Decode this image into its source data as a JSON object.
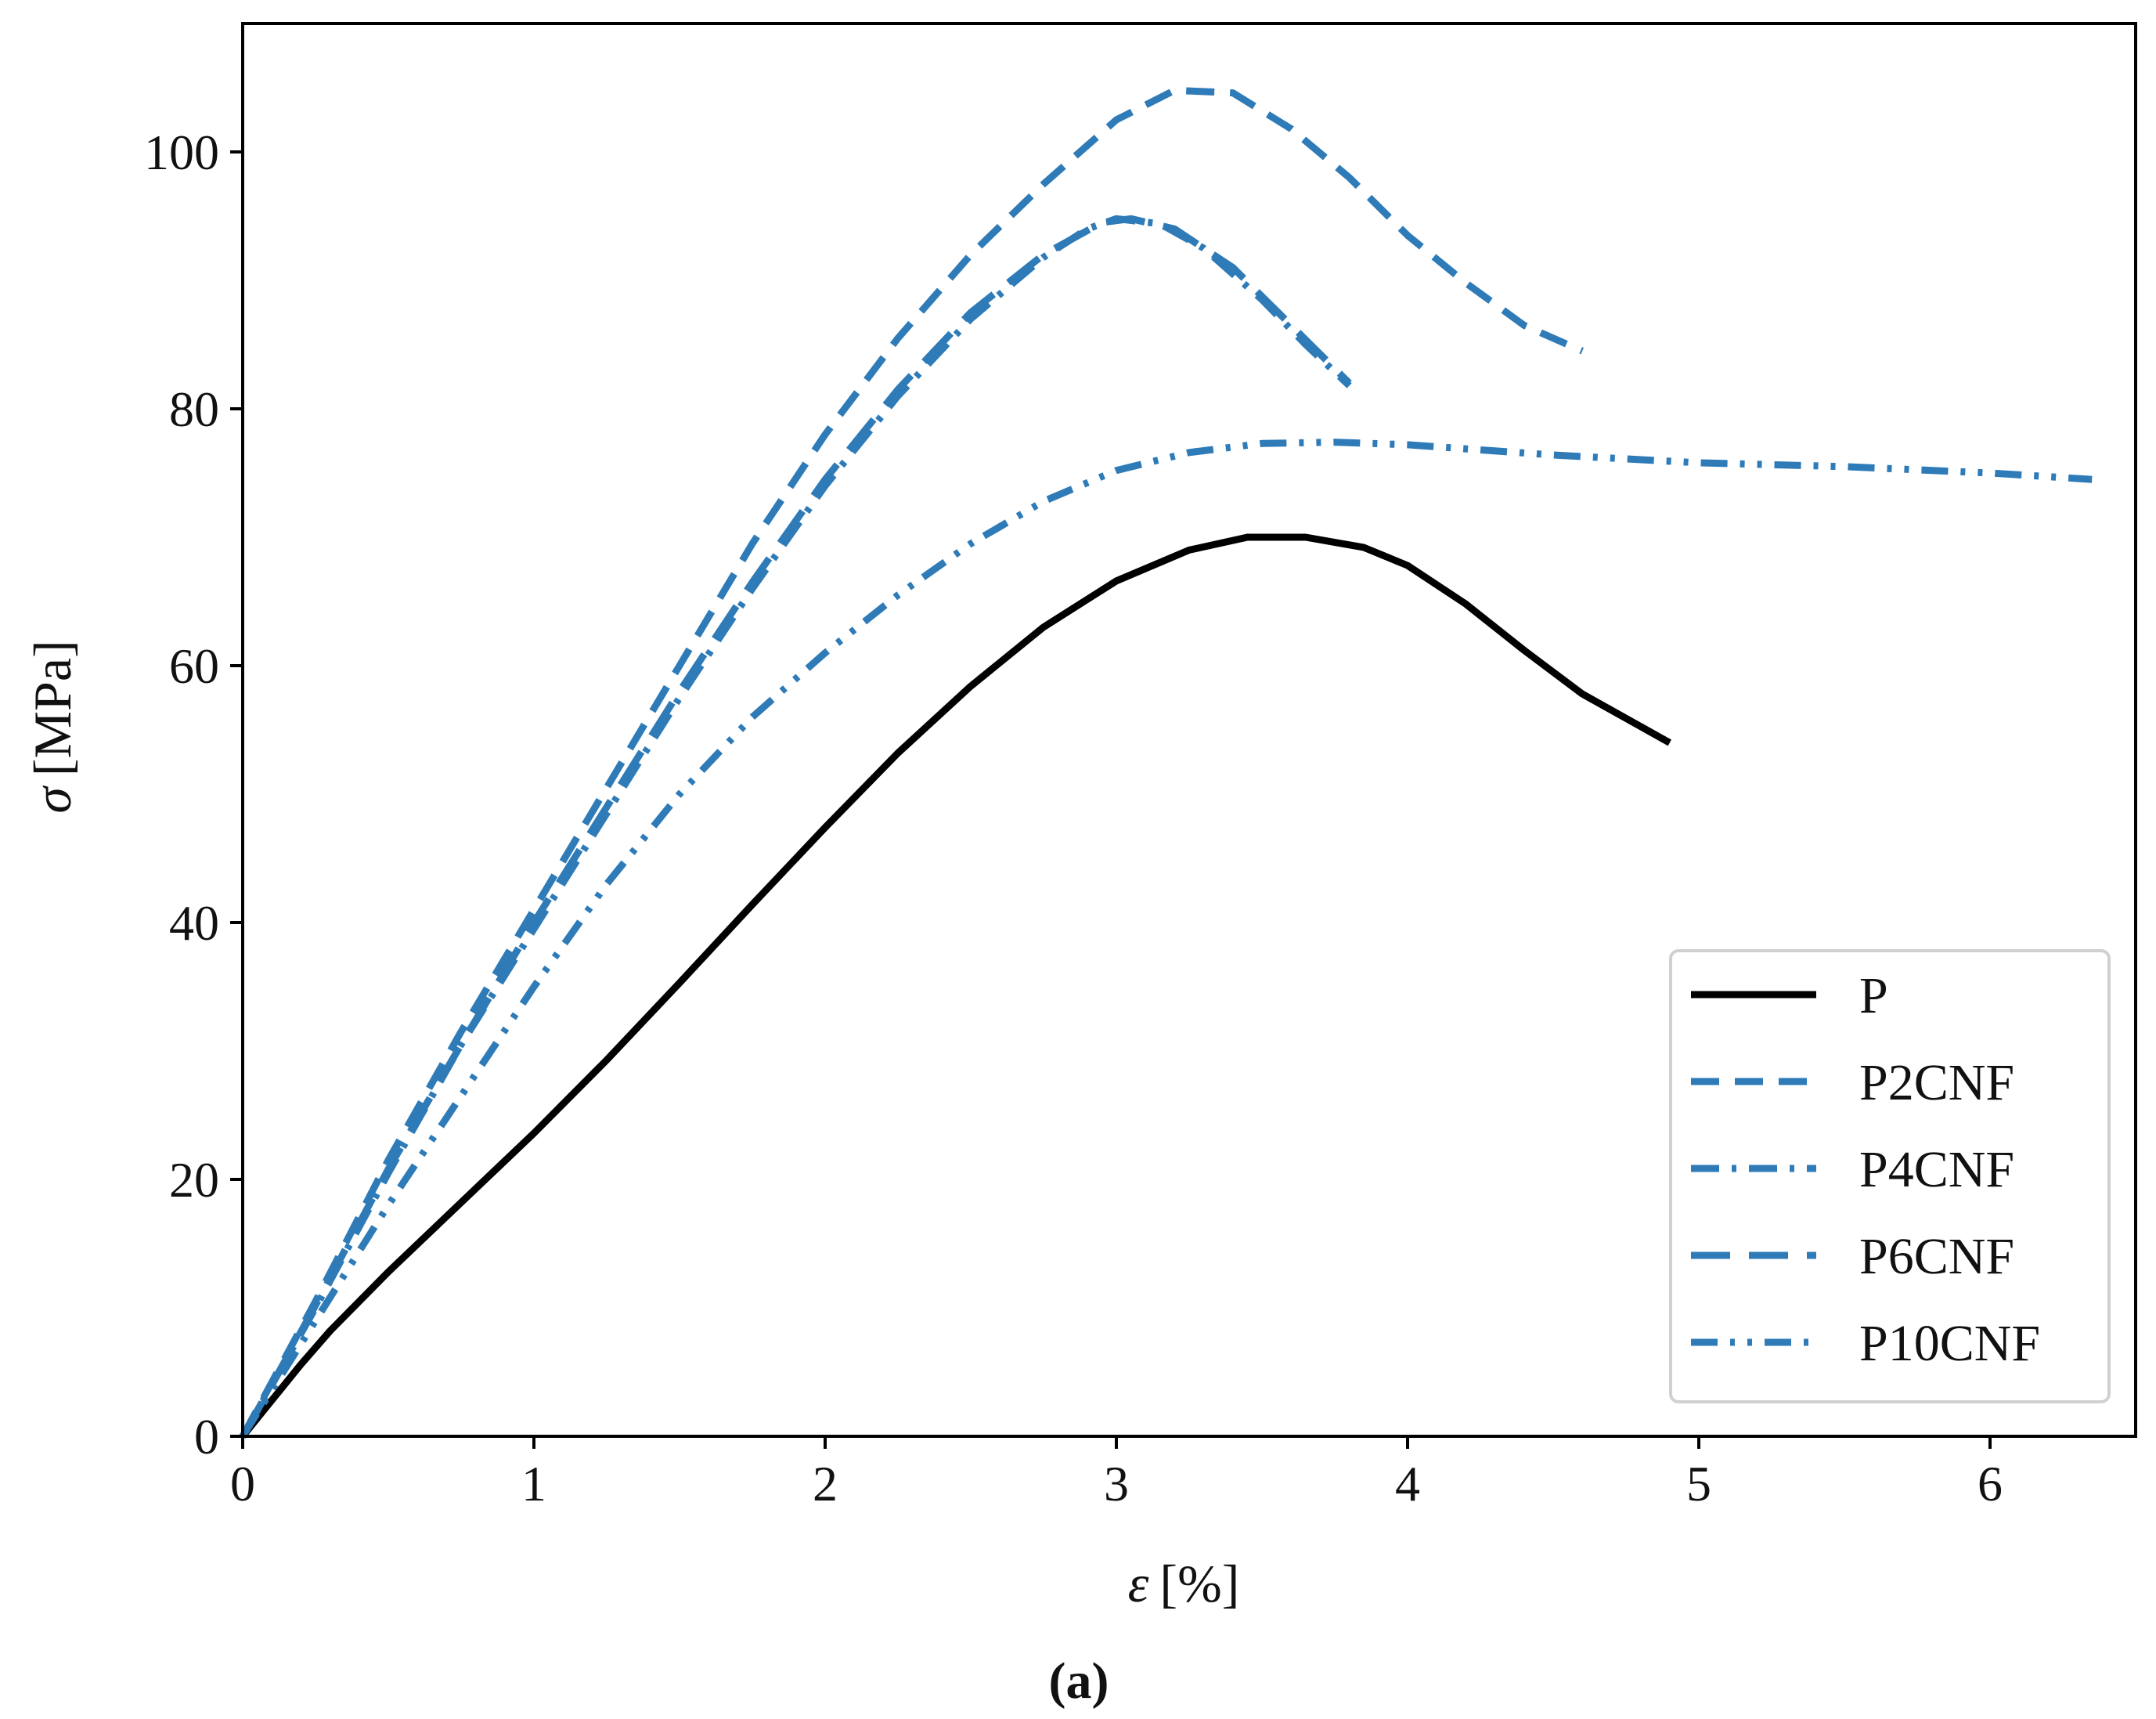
{
  "chart_data": {
    "type": "line",
    "title": "",
    "xlabel_symbol": "ε",
    "xlabel_unit": "[%]",
    "ylabel_symbol": "σ",
    "ylabel_unit": "[MPa]",
    "xlim": [
      0,
      6.5
    ],
    "ylim": [
      0,
      110
    ],
    "xticks": [
      0,
      1,
      2,
      3,
      4,
      5,
      6
    ],
    "yticks": [
      0,
      20,
      40,
      60,
      80,
      100
    ],
    "grid": false,
    "legend_position": "lower-right",
    "caption": "(a)",
    "series": [
      {
        "name": "P",
        "color": "#000000",
        "dash": "solid",
        "points": [
          [
            0,
            0
          ],
          [
            0.1,
            2.8
          ],
          [
            0.2,
            5.6
          ],
          [
            0.3,
            8.2
          ],
          [
            0.5,
            12.8
          ],
          [
            0.75,
            18.2
          ],
          [
            1.0,
            23.6
          ],
          [
            1.25,
            29.3
          ],
          [
            1.5,
            35.3
          ],
          [
            1.75,
            41.4
          ],
          [
            2.0,
            47.4
          ],
          [
            2.25,
            53.2
          ],
          [
            2.5,
            58.4
          ],
          [
            2.75,
            63.0
          ],
          [
            3.0,
            66.6
          ],
          [
            3.25,
            69.0
          ],
          [
            3.45,
            70.0
          ],
          [
            3.65,
            70.0
          ],
          [
            3.85,
            69.2
          ],
          [
            4.0,
            67.8
          ],
          [
            4.2,
            64.8
          ],
          [
            4.4,
            61.2
          ],
          [
            4.6,
            57.8
          ],
          [
            4.9,
            54.0
          ]
        ]
      },
      {
        "name": "P2CNF",
        "color": "#2e7bb8",
        "dash": "dashed",
        "points": [
          [
            0,
            0
          ],
          [
            0.1,
            4.2
          ],
          [
            0.25,
            10.5
          ],
          [
            0.5,
            21.5
          ],
          [
            0.75,
            31.5
          ],
          [
            1.0,
            41.0
          ],
          [
            1.25,
            50.5
          ],
          [
            1.5,
            60.0
          ],
          [
            1.75,
            69.5
          ],
          [
            2.0,
            78.0
          ],
          [
            2.25,
            85.5
          ],
          [
            2.5,
            92.0
          ],
          [
            2.75,
            97.5
          ],
          [
            3.0,
            102.5
          ],
          [
            3.2,
            104.8
          ],
          [
            3.4,
            104.6
          ],
          [
            3.6,
            101.8
          ],
          [
            3.8,
            98.0
          ],
          [
            4.0,
            93.5
          ],
          [
            4.2,
            89.8
          ],
          [
            4.4,
            86.5
          ],
          [
            4.6,
            84.5
          ]
        ]
      },
      {
        "name": "P4CNF",
        "color": "#2e7bb8",
        "dash": "dashdot",
        "points": [
          [
            0,
            0
          ],
          [
            0.1,
            4.0
          ],
          [
            0.25,
            10.0
          ],
          [
            0.5,
            20.5
          ],
          [
            0.75,
            30.5
          ],
          [
            1.0,
            39.5
          ],
          [
            1.25,
            48.5
          ],
          [
            1.5,
            57.5
          ],
          [
            1.75,
            66.0
          ],
          [
            2.0,
            74.0
          ],
          [
            2.25,
            81.0
          ],
          [
            2.5,
            87.0
          ],
          [
            2.75,
            91.8
          ],
          [
            2.9,
            94.0
          ],
          [
            3.0,
            94.8
          ],
          [
            3.15,
            94.4
          ],
          [
            3.3,
            92.5
          ],
          [
            3.5,
            88.5
          ],
          [
            3.65,
            85.0
          ],
          [
            3.8,
            81.8
          ]
        ]
      },
      {
        "name": "P6CNF",
        "color": "#2e7bb8",
        "dash": "longdash",
        "points": [
          [
            0,
            0
          ],
          [
            0.1,
            4.0
          ],
          [
            0.25,
            10.2
          ],
          [
            0.5,
            20.8
          ],
          [
            0.75,
            30.5
          ],
          [
            1.0,
            40.0
          ],
          [
            1.25,
            49.0
          ],
          [
            1.5,
            58.0
          ],
          [
            1.75,
            66.5
          ],
          [
            2.0,
            74.5
          ],
          [
            2.25,
            81.5
          ],
          [
            2.5,
            87.5
          ],
          [
            2.75,
            92.0
          ],
          [
            2.95,
            94.5
          ],
          [
            3.05,
            94.8
          ],
          [
            3.2,
            94.0
          ],
          [
            3.4,
            91.0
          ],
          [
            3.6,
            86.5
          ],
          [
            3.8,
            82.0
          ]
        ]
      },
      {
        "name": "P10CNF",
        "color": "#2e7bb8",
        "dash": "dashdotdot",
        "points": [
          [
            0,
            0
          ],
          [
            0.1,
            3.6
          ],
          [
            0.25,
            9.0
          ],
          [
            0.5,
            18.0
          ],
          [
            0.75,
            26.5
          ],
          [
            1.0,
            35.0
          ],
          [
            1.25,
            43.0
          ],
          [
            1.5,
            50.0
          ],
          [
            1.75,
            56.0
          ],
          [
            2.0,
            61.0
          ],
          [
            2.25,
            65.5
          ],
          [
            2.5,
            69.5
          ],
          [
            2.75,
            72.8
          ],
          [
            3.0,
            75.2
          ],
          [
            3.25,
            76.6
          ],
          [
            3.5,
            77.3
          ],
          [
            3.75,
            77.4
          ],
          [
            4.0,
            77.2
          ],
          [
            4.5,
            76.4
          ],
          [
            5.0,
            75.8
          ],
          [
            5.5,
            75.5
          ],
          [
            6.0,
            75.0
          ],
          [
            6.35,
            74.5
          ]
        ]
      }
    ]
  }
}
